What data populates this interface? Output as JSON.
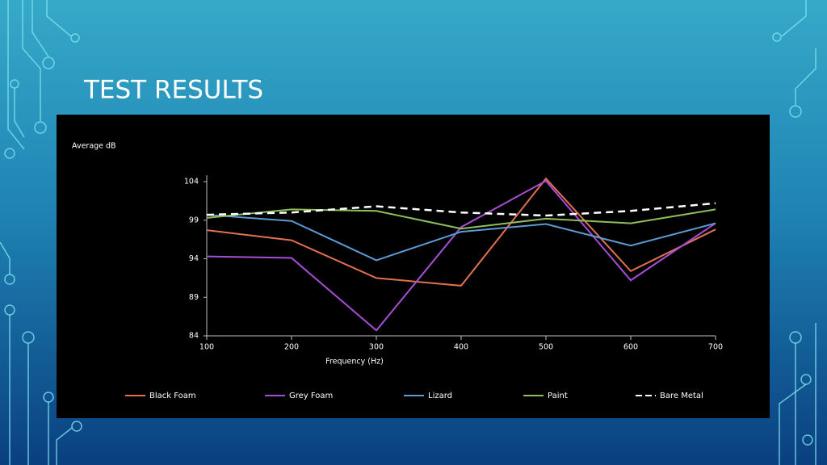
{
  "chart_data": {
    "type": "line",
    "title": "TEST RESULTS",
    "y_label": "Average dB",
    "x_label": "Frequency (Hz)",
    "x": [
      100,
      200,
      300,
      400,
      500,
      600,
      700
    ],
    "xlim": [
      100,
      700
    ],
    "xticks": [
      100,
      200,
      300,
      400,
      500,
      600,
      700
    ],
    "ylim": [
      84,
      104
    ],
    "yticks": [
      84,
      89,
      94,
      99,
      104
    ],
    "grid": false,
    "legend": "bottom",
    "series": [
      {
        "name": "Black Foam",
        "color": "#e2704f",
        "style": "solid",
        "values": [
          97.7,
          96.4,
          91.5,
          90.5,
          104.4,
          92.4,
          97.8
        ]
      },
      {
        "name": "Grey Foam",
        "color": "#a64fd6",
        "style": "solid",
        "values": [
          94.3,
          94.1,
          84.7,
          98.1,
          104.1,
          91.2,
          98.6
        ]
      },
      {
        "name": "Lizard",
        "color": "#5b9bd5",
        "style": "solid",
        "values": [
          99.7,
          98.9,
          93.8,
          97.5,
          98.5,
          95.7,
          98.6
        ]
      },
      {
        "name": "Paint",
        "color": "#8fbf5a",
        "style": "solid",
        "values": [
          99.3,
          100.4,
          100.2,
          97.9,
          99.2,
          98.6,
          100.4
        ]
      },
      {
        "name": "Bare Metal",
        "color": "#ffffff",
        "style": "dashed",
        "values": [
          99.7,
          100.0,
          100.8,
          100.0,
          99.6,
          100.2,
          101.2
        ]
      }
    ]
  }
}
